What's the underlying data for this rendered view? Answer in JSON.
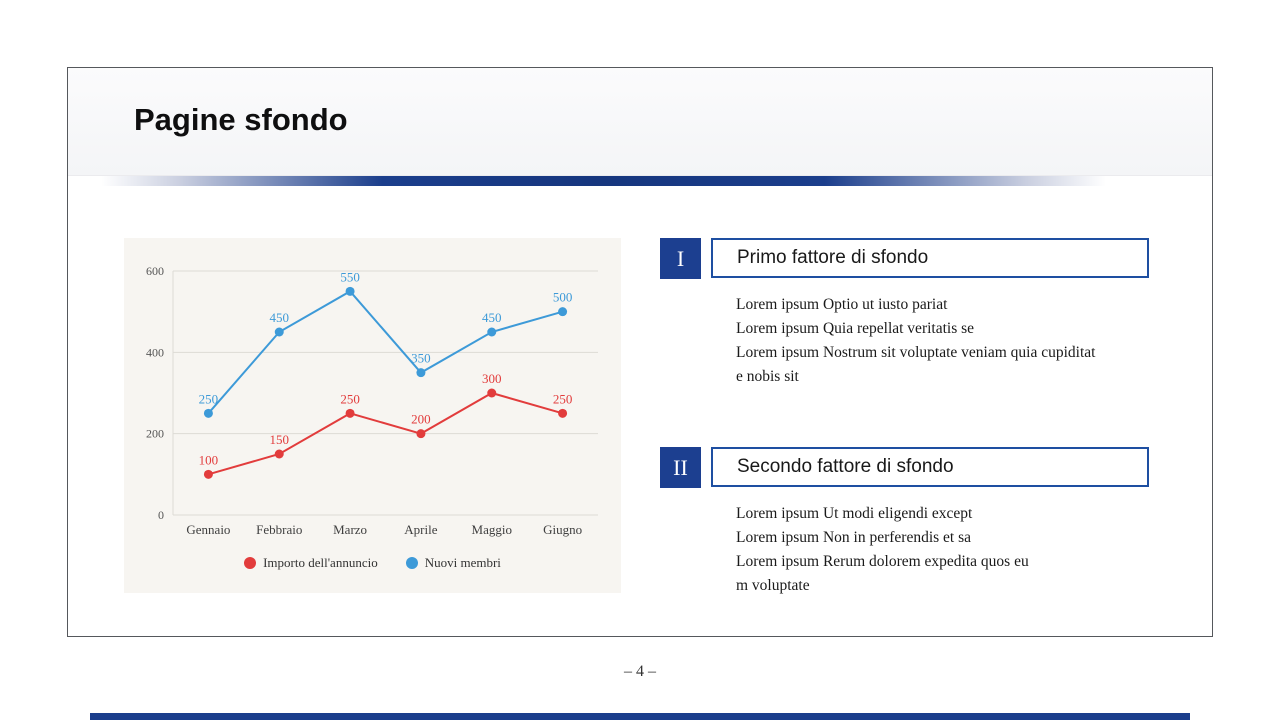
{
  "slide": {
    "title": "Pagine sfondo",
    "page_number": "– 4 –"
  },
  "colors": {
    "accent_blue": "#1c3f90",
    "heading_border_blue": "#1e4fa1",
    "divider_bar_blue": "#1b3e8c",
    "chart_background": "#f7f5f1",
    "series_red": "#e23c3c",
    "series_blue": "#3d9ad8"
  },
  "chart_data": {
    "type": "line",
    "categories": [
      "Gennaio",
      "Febbraio",
      "Marzo",
      "Aprile",
      "Maggio",
      "Giugno"
    ],
    "series": [
      {
        "name": "Importo dell'annuncio",
        "color": "#e23c3c",
        "values": [
          100,
          150,
          250,
          200,
          300,
          250
        ]
      },
      {
        "name": "Nuovi membri",
        "color": "#3d9ad8",
        "values": [
          250,
          450,
          550,
          350,
          450,
          500
        ]
      }
    ],
    "yticks": [
      0,
      200,
      400,
      600
    ],
    "ylim": [
      0,
      600
    ],
    "grid": true,
    "legend_position": "bottom",
    "data_labels": true,
    "title": "",
    "xlabel": "",
    "ylabel": ""
  },
  "sections": [
    {
      "numeral": "I",
      "heading": "Primo fattore di sfondo",
      "body": [
        "Lorem ipsum Optio ut iusto pariat",
        "Lorem ipsum Quia repellat veritatis se",
        "Lorem ipsum Nostrum sit voluptate veniam quia cupiditat",
        "e nobis sit"
      ]
    },
    {
      "numeral": "II",
      "heading": "Secondo fattore di sfondo",
      "body": [
        "Lorem ipsum Ut modi eligendi except",
        "Lorem ipsum Non in perferendis et sa",
        "Lorem ipsum Rerum dolorem expedita quos eu",
        "m voluptate"
      ]
    }
  ]
}
